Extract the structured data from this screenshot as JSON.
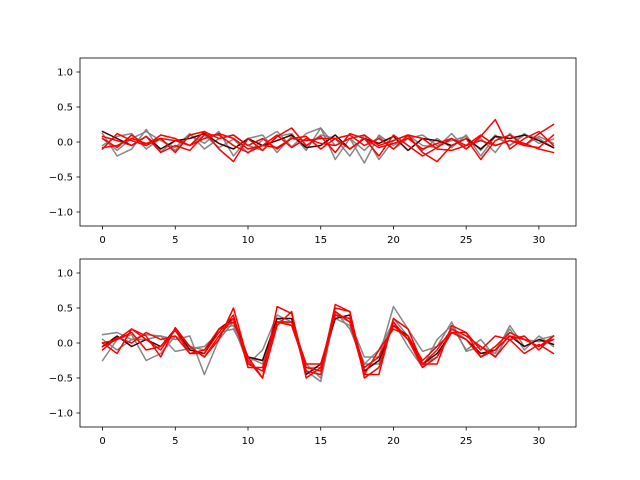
{
  "chart_data": [
    {
      "type": "line",
      "title": "",
      "xlabel": "",
      "ylabel": "",
      "xlim": [
        -1.55,
        32.55
      ],
      "ylim": [
        -1.2,
        1.2
      ],
      "xticks": [
        0,
        5,
        10,
        15,
        20,
        25,
        30
      ],
      "yticks": [
        -1.0,
        -0.5,
        0.0,
        0.5,
        1.0
      ],
      "x": [
        0,
        1,
        2,
        3,
        4,
        5,
        6,
        7,
        8,
        9,
        10,
        11,
        12,
        13,
        14,
        15,
        16,
        17,
        18,
        19,
        20,
        21,
        22,
        23,
        24,
        25,
        26,
        27,
        28,
        29,
        30,
        31
      ],
      "series": [
        {
          "color": "#808080",
          "values": [
            0.12,
            -0.2,
            -0.1,
            0.18,
            -0.14,
            0.02,
            -0.05,
            0.1,
            -0.08,
            0.04,
            -0.16,
            0.03,
            0.15,
            -0.07,
            0.12,
            0.2,
            -0.25,
            0.05,
            -0.3,
            0.1,
            -0.05,
            0.08,
            -0.12,
            0.05,
            -0.08,
            0.1,
            -0.2,
            0.08,
            -0.05,
            0.12,
            -0.02,
            0.04
          ]
        },
        {
          "color": "#808080",
          "values": [
            -0.05,
            0.08,
            0.12,
            -0.1,
            0.05,
            -0.12,
            0.1,
            -0.02,
            0.15,
            -0.2,
            0.05,
            0.1,
            -0.15,
            0.08,
            -0.06,
            0.1,
            0.05,
            -0.2,
            0.1,
            -0.25,
            0.02,
            0.1,
            -0.05,
            -0.08,
            0.12,
            -0.1,
            0.05,
            -0.15,
            0.12,
            -0.05,
            0.08,
            -0.02
          ]
        },
        {
          "color": "#808080",
          "values": [
            0.05,
            -0.12,
            0.05,
            0.15,
            0.02,
            -0.08,
            0.12,
            -0.1,
            0.05,
            0.1,
            -0.05,
            -0.12,
            0.08,
            0.12,
            -0.12,
            0.2,
            -0.05,
            0.05,
            -0.12,
            0.08,
            -0.1,
            0.05,
            0.1,
            -0.05,
            0.02,
            0.08,
            -0.12,
            0.1,
            -0.05,
            0.1,
            0.05,
            -0.08
          ]
        },
        {
          "color": "#400000",
          "values": [
            0.15,
            0.05,
            -0.05,
            0.08,
            -0.1,
            0.02,
            0.05,
            0.12,
            -0.02,
            -0.1,
            0.05,
            -0.05,
            0.02,
            0.1,
            -0.08,
            -0.05,
            0.1,
            -0.1,
            0.05,
            -0.02,
            0.08,
            -0.12,
            0.05,
            0.02,
            -0.05,
            0.05,
            -0.1,
            0.08,
            0.05,
            0.1,
            0.02,
            -0.08
          ]
        },
        {
          "color": "#FF0000",
          "values": [
            -0.1,
            0.12,
            0.02,
            -0.05,
            0.05,
            -0.15,
            0.1,
            0.15,
            -0.1,
            -0.28,
            0.05,
            -0.12,
            0.08,
            0.2,
            -0.05,
            0.08,
            -0.15,
            0.12,
            0.05,
            -0.2,
            0.1,
            -0.05,
            -0.2,
            -0.08,
            0.05,
            -0.1,
            0.08,
            0.32,
            -0.1,
            0.05,
            0.15,
            -0.05
          ]
        },
        {
          "color": "#FF0000",
          "values": [
            0.05,
            -0.08,
            0.1,
            -0.05,
            0.1,
            0.05,
            -0.05,
            0.05,
            0.12,
            0.05,
            -0.1,
            -0.05,
            -0.08,
            0.05,
            0.08,
            -0.1,
            0.05,
            0.1,
            -0.05,
            0.05,
            -0.1,
            0.1,
            -0.15,
            -0.28,
            -0.05,
            0.05,
            -0.25,
            0.02,
            0.1,
            -0.05,
            0.12,
            0.25
          ]
        },
        {
          "color": "#FF0000",
          "values": [
            0.08,
            0.02,
            -0.05,
            0.08,
            -0.15,
            -0.05,
            -0.12,
            0.1,
            0.1,
            -0.05,
            -0.15,
            -0.05,
            0.1,
            -0.08,
            0.05,
            -0.02,
            -0.05,
            0.05,
            0.1,
            -0.05,
            0.02,
            0.1,
            0.05,
            -0.1,
            -0.12,
            -0.05,
            0.1,
            -0.05,
            0.02,
            -0.05,
            -0.08,
            0.1
          ]
        },
        {
          "color": "#FF0000",
          "values": [
            -0.08,
            -0.05,
            0.05,
            -0.02,
            0.05,
            0.02,
            -0.05,
            0.15,
            0.05,
            0.1,
            -0.05,
            0.05,
            -0.1,
            0.05,
            0.02,
            0.05,
            0.05,
            -0.1,
            0.05,
            -0.08,
            -0.02,
            0.05,
            -0.1,
            -0.02,
            0.05,
            -0.05,
            0.02,
            -0.05,
            0.02,
            -0.02,
            -0.1,
            -0.15
          ]
        }
      ]
    },
    {
      "type": "line",
      "title": "",
      "xlabel": "",
      "ylabel": "",
      "xlim": [
        -1.55,
        32.55
      ],
      "ylim": [
        -1.2,
        1.2
      ],
      "xticks": [
        0,
        5,
        10,
        15,
        20,
        25,
        30
      ],
      "yticks": [
        -1.0,
        -0.5,
        0.0,
        0.5,
        1.0
      ],
      "x": [
        0,
        1,
        2,
        3,
        4,
        5,
        6,
        7,
        8,
        9,
        10,
        11,
        12,
        13,
        14,
        15,
        16,
        17,
        18,
        19,
        20,
        21,
        22,
        23,
        24,
        25,
        26,
        27,
        28,
        29,
        30,
        31
      ],
      "series": [
        {
          "color": "#808080",
          "values": [
            0.12,
            0.15,
            0.05,
            0.12,
            0.1,
            0.05,
            0.1,
            -0.45,
            0.05,
            0.3,
            -0.2,
            -0.3,
            0.3,
            0.3,
            -0.3,
            -0.5,
            0.4,
            0.3,
            -0.2,
            -0.2,
            0.52,
            0.2,
            -0.12,
            -0.05,
            0.3,
            -0.12,
            -0.05,
            -0.15,
            0.25,
            -0.05,
            0.05,
            0.1
          ]
        },
        {
          "color": "#808080",
          "values": [
            -0.25,
            0.05,
            0.12,
            -0.25,
            -0.15,
            0.1,
            -0.05,
            -0.1,
            0.2,
            0.25,
            -0.3,
            -0.1,
            0.4,
            0.3,
            -0.4,
            -0.55,
            0.45,
            0.2,
            -0.3,
            -0.3,
            0.35,
            0.1,
            -0.3,
            -0.2,
            0.2,
            0.05,
            -0.15,
            -0.1,
            0.2,
            -0.1,
            0.1,
            -0.05
          ]
        },
        {
          "color": "#808080",
          "values": [
            0.05,
            -0.1,
            0.05,
            0.05,
            0.1,
            -0.12,
            -0.08,
            -0.05,
            0.15,
            0.2,
            -0.2,
            -0.25,
            0.35,
            0.25,
            -0.35,
            -0.35,
            0.35,
            0.25,
            -0.3,
            -0.1,
            0.3,
            -0.05,
            -0.35,
            0.05,
            0.25,
            -0.1,
            0.05,
            -0.2,
            0.15,
            0.05,
            0.02,
            0.05
          ]
        },
        {
          "color": "#400000",
          "values": [
            -0.05,
            0.1,
            -0.05,
            0.05,
            -0.05,
            0.2,
            -0.1,
            -0.15,
            0.2,
            0.35,
            -0.2,
            -0.25,
            0.35,
            0.35,
            -0.45,
            -0.3,
            0.35,
            0.4,
            -0.4,
            -0.25,
            0.25,
            0.1,
            -0.3,
            -0.15,
            0.15,
            0.05,
            -0.15,
            -0.1,
            0.1,
            -0.05,
            0.05,
            -0.02
          ]
        },
        {
          "color": "#FF0000",
          "values": [
            0.0,
            -0.15,
            0.2,
            0.1,
            -0.2,
            0.22,
            -0.05,
            -0.2,
            0.05,
            0.5,
            -0.25,
            -0.5,
            0.52,
            0.42,
            -0.4,
            -0.45,
            0.45,
            0.3,
            -0.45,
            -0.1,
            0.2,
            0.1,
            -0.25,
            -0.05,
            0.15,
            0.05,
            -0.2,
            -0.1,
            0.1,
            0.05,
            -0.05,
            0.1
          ]
        },
        {
          "color": "#FF0000",
          "values": [
            -0.05,
            0.05,
            0.15,
            -0.1,
            -0.05,
            0.18,
            -0.15,
            -0.15,
            0.15,
            0.4,
            -0.35,
            -0.35,
            0.3,
            0.25,
            -0.35,
            -0.4,
            0.55,
            0.45,
            -0.5,
            -0.35,
            0.3,
            0.05,
            -0.35,
            -0.2,
            0.15,
            0.15,
            -0.1,
            0.1,
            0.05,
            -0.15,
            -0.02,
            -0.15
          ]
        },
        {
          "color": "#FF0000",
          "values": [
            0.0,
            0.05,
            0.2,
            0.05,
            -0.1,
            0.2,
            -0.05,
            -0.2,
            0.1,
            0.35,
            -0.3,
            -0.4,
            0.3,
            0.3,
            -0.3,
            -0.3,
            0.4,
            0.35,
            -0.35,
            -0.2,
            0.25,
            0.05,
            -0.3,
            -0.1,
            0.2,
            0.1,
            -0.05,
            -0.2,
            0.05,
            0.1,
            -0.1,
            0.1
          ]
        },
        {
          "color": "#FF0000",
          "values": [
            -0.1,
            0.08,
            0.0,
            0.15,
            0.05,
            0.1,
            -0.15,
            -0.1,
            0.2,
            0.3,
            -0.2,
            -0.5,
            0.25,
            0.45,
            -0.5,
            -0.35,
            0.5,
            0.45,
            -0.45,
            -0.45,
            0.35,
            0.2,
            -0.3,
            -0.3,
            0.25,
            0.15,
            -0.2,
            -0.05,
            0.15,
            0.05,
            -0.05,
            0.05
          ]
        }
      ]
    }
  ]
}
